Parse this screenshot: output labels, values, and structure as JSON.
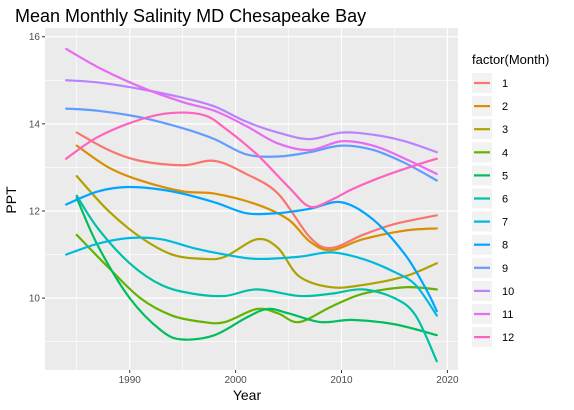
{
  "chart_data": {
    "type": "line",
    "title": "Mean Monthly Salinity MD Chesapeake Bay",
    "xlabel": "Year",
    "ylabel": "PPT",
    "xlim": [
      1982,
      2021
    ],
    "ylim": [
      8.35,
      16.2
    ],
    "x_ticks": [
      1990,
      2000,
      2010,
      2020
    ],
    "y_ticks": [
      10,
      12,
      14,
      16
    ],
    "grid": true,
    "legend": {
      "title": "factor(Month)",
      "position": "right"
    },
    "series": [
      {
        "name": "1",
        "color": "#F8766D",
        "points": [
          [
            1985,
            13.8
          ],
          [
            1988,
            13.4
          ],
          [
            1991,
            13.15
          ],
          [
            1995,
            13.05
          ],
          [
            1998,
            13.15
          ],
          [
            2001,
            12.85
          ],
          [
            2004,
            12.4
          ],
          [
            2007,
            11.4
          ],
          [
            2009,
            11.15
          ],
          [
            2012,
            11.45
          ],
          [
            2015,
            11.7
          ],
          [
            2019,
            11.9
          ]
        ]
      },
      {
        "name": "2",
        "color": "#DB8E00",
        "points": [
          [
            1985,
            13.5
          ],
          [
            1988,
            13.0
          ],
          [
            1991,
            12.7
          ],
          [
            1995,
            12.45
          ],
          [
            1998,
            12.4
          ],
          [
            2002,
            12.15
          ],
          [
            2005,
            11.8
          ],
          [
            2007,
            11.3
          ],
          [
            2009,
            11.1
          ],
          [
            2012,
            11.35
          ],
          [
            2016,
            11.55
          ],
          [
            2019,
            11.6
          ]
        ]
      },
      {
        "name": "3",
        "color": "#AEA200",
        "points": [
          [
            1985,
            12.8
          ],
          [
            1988,
            12.0
          ],
          [
            1991,
            11.4
          ],
          [
            1994,
            11.0
          ],
          [
            1997,
            10.9
          ],
          [
            1999,
            10.95
          ],
          [
            2002,
            11.35
          ],
          [
            2004,
            11.15
          ],
          [
            2006,
            10.5
          ],
          [
            2009,
            10.25
          ],
          [
            2012,
            10.3
          ],
          [
            2016,
            10.5
          ],
          [
            2019,
            10.8
          ]
        ]
      },
      {
        "name": "4",
        "color": "#64B200",
        "points": [
          [
            1985,
            11.45
          ],
          [
            1988,
            10.7
          ],
          [
            1991,
            10.0
          ],
          [
            1994,
            9.6
          ],
          [
            1997,
            9.45
          ],
          [
            1999,
            9.45
          ],
          [
            2002,
            9.75
          ],
          [
            2004,
            9.65
          ],
          [
            2006,
            9.45
          ],
          [
            2009,
            9.8
          ],
          [
            2012,
            10.1
          ],
          [
            2016,
            10.25
          ],
          [
            2019,
            10.2
          ]
        ]
      },
      {
        "name": "5",
        "color": "#00BD5C",
        "points": [
          [
            1985,
            12.3
          ],
          [
            1987,
            11.2
          ],
          [
            1990,
            10.0
          ],
          [
            1993,
            9.25
          ],
          [
            1995,
            9.05
          ],
          [
            1998,
            9.15
          ],
          [
            2001,
            9.55
          ],
          [
            2003,
            9.75
          ],
          [
            2005,
            9.65
          ],
          [
            2008,
            9.45
          ],
          [
            2011,
            9.5
          ],
          [
            2015,
            9.4
          ],
          [
            2019,
            9.15
          ]
        ]
      },
      {
        "name": "6",
        "color": "#00C1A7",
        "points": [
          [
            1985,
            12.35
          ],
          [
            1987,
            11.6
          ],
          [
            1990,
            10.8
          ],
          [
            1993,
            10.3
          ],
          [
            1996,
            10.1
          ],
          [
            1999,
            10.05
          ],
          [
            2002,
            10.2
          ],
          [
            2006,
            10.05
          ],
          [
            2009,
            10.1
          ],
          [
            2012,
            10.2
          ],
          [
            2015,
            10.0
          ],
          [
            2017,
            9.6
          ],
          [
            2019,
            8.55
          ]
        ]
      },
      {
        "name": "7",
        "color": "#00BADE",
        "points": [
          [
            1984,
            11.0
          ],
          [
            1987,
            11.25
          ],
          [
            1990,
            11.38
          ],
          [
            1993,
            11.35
          ],
          [
            1996,
            11.15
          ],
          [
            1999,
            11.0
          ],
          [
            2002,
            10.9
          ],
          [
            2006,
            10.95
          ],
          [
            2009,
            11.05
          ],
          [
            2012,
            10.9
          ],
          [
            2015,
            10.6
          ],
          [
            2017,
            10.3
          ],
          [
            2019,
            9.6
          ]
        ]
      },
      {
        "name": "8",
        "color": "#00A5FF",
        "points": [
          [
            1984,
            12.15
          ],
          [
            1987,
            12.45
          ],
          [
            1990,
            12.55
          ],
          [
            1994,
            12.45
          ],
          [
            1998,
            12.2
          ],
          [
            2001,
            11.95
          ],
          [
            2004,
            11.95
          ],
          [
            2007,
            12.05
          ],
          [
            2010,
            12.2
          ],
          [
            2013,
            11.8
          ],
          [
            2016,
            11.0
          ],
          [
            2018,
            10.2
          ],
          [
            2019,
            9.7
          ]
        ]
      },
      {
        "name": "9",
        "color": "#619CFF",
        "points": [
          [
            1984,
            14.35
          ],
          [
            1987,
            14.3
          ],
          [
            1991,
            14.15
          ],
          [
            1995,
            13.9
          ],
          [
            1998,
            13.65
          ],
          [
            2001,
            13.3
          ],
          [
            2004,
            13.25
          ],
          [
            2007,
            13.35
          ],
          [
            2010,
            13.5
          ],
          [
            2013,
            13.4
          ],
          [
            2016,
            13.1
          ],
          [
            2019,
            12.7
          ]
        ]
      },
      {
        "name": "10",
        "color": "#B983FF",
        "points": [
          [
            1984,
            15.0
          ],
          [
            1987,
            14.95
          ],
          [
            1991,
            14.8
          ],
          [
            1995,
            14.6
          ],
          [
            1998,
            14.4
          ],
          [
            2001,
            14.05
          ],
          [
            2004,
            13.8
          ],
          [
            2007,
            13.65
          ],
          [
            2010,
            13.8
          ],
          [
            2013,
            13.75
          ],
          [
            2016,
            13.6
          ],
          [
            2019,
            13.35
          ]
        ]
      },
      {
        "name": "11",
        "color": "#E76BF3",
        "points": [
          [
            1984,
            15.72
          ],
          [
            1987,
            15.3
          ],
          [
            1991,
            14.85
          ],
          [
            1995,
            14.5
          ],
          [
            1998,
            14.3
          ],
          [
            2001,
            13.95
          ],
          [
            2004,
            13.55
          ],
          [
            2007,
            13.4
          ],
          [
            2010,
            13.6
          ],
          [
            2013,
            13.5
          ],
          [
            2016,
            13.2
          ],
          [
            2019,
            12.85
          ]
        ]
      },
      {
        "name": "12",
        "color": "#FF62BC",
        "points": [
          [
            1984,
            13.2
          ],
          [
            1987,
            13.7
          ],
          [
            1991,
            14.1
          ],
          [
            1994,
            14.25
          ],
          [
            1997,
            14.2
          ],
          [
            1999,
            13.9
          ],
          [
            2002,
            13.3
          ],
          [
            2005,
            12.55
          ],
          [
            2007,
            12.1
          ],
          [
            2009,
            12.25
          ],
          [
            2011,
            12.5
          ],
          [
            2014,
            12.8
          ],
          [
            2017,
            13.05
          ],
          [
            2019,
            13.2
          ]
        ]
      }
    ]
  }
}
